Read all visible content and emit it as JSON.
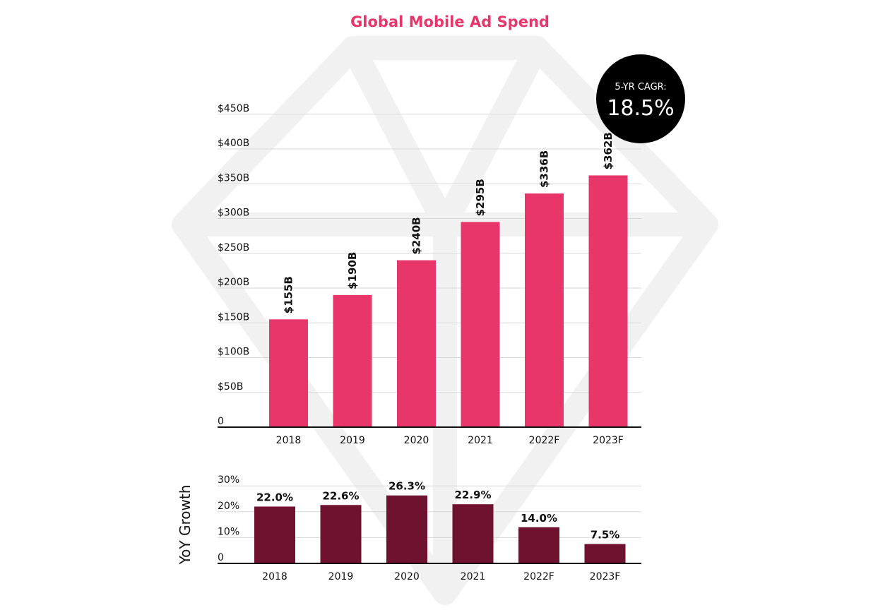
{
  "title": "Global Mobile Ad Spend",
  "colors": {
    "title": "#e8366b",
    "main_bar": "#e8366b",
    "growth_bar": "#6e1230",
    "badge": "#000000",
    "watermark": "#f1f1f1",
    "grid": "#d9d9d9",
    "axis": "#111111"
  },
  "cagr_badge": {
    "label": "5-YR CAGR:",
    "value": "18.5%"
  },
  "chart_data": [
    {
      "type": "bar",
      "categories": [
        "2018",
        "2019",
        "2020",
        "2021",
        "2022F",
        "2023F"
      ],
      "values": [
        155,
        190,
        240,
        295,
        336,
        362
      ],
      "value_labels": [
        "$155B",
        "$190B",
        "$240B",
        "$295B",
        "$336B",
        "$362B"
      ],
      "ylim": [
        0,
        450
      ],
      "yticks": [
        0,
        50,
        100,
        150,
        200,
        250,
        300,
        350,
        400,
        450
      ],
      "ytick_labels": [
        "0",
        "$50B",
        "$100B",
        "$150B",
        "$200B",
        "$250B",
        "$300B",
        "$350B",
        "$400B",
        "$450B"
      ],
      "grid": true,
      "xlabel": "",
      "ylabel": ""
    },
    {
      "type": "bar",
      "categories": [
        "2018",
        "2019",
        "2020",
        "2021",
        "2022F",
        "2023F"
      ],
      "values": [
        22.0,
        22.6,
        26.3,
        22.9,
        14.0,
        7.5
      ],
      "value_labels": [
        "22.0%",
        "22.6%",
        "26.3%",
        "22.9%",
        "14.0%",
        "7.5%"
      ],
      "ylim": [
        0,
        30
      ],
      "yticks": [
        0,
        10,
        20,
        30
      ],
      "ytick_labels": [
        "0",
        "10%",
        "20%",
        "30%"
      ],
      "grid": true,
      "xlabel": "",
      "ylabel": "YoY Growth"
    }
  ]
}
